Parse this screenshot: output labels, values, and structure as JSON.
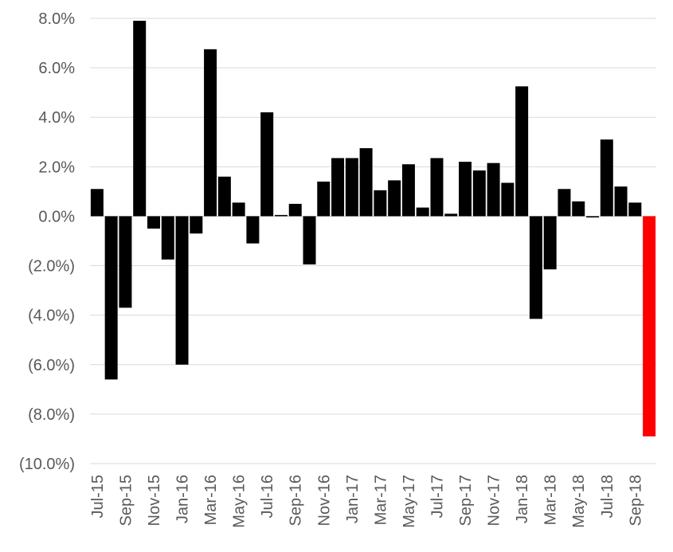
{
  "chart_data": {
    "type": "bar",
    "title": "",
    "xlabel": "",
    "ylabel": "",
    "ylim": [
      -10,
      8
    ],
    "yticks": [
      8,
      6,
      4,
      2,
      0,
      -2,
      -4,
      -6,
      -8,
      -10
    ],
    "ytick_labels": [
      "8.0%",
      "6.0%",
      "4.0%",
      "2.0%",
      "0.0%",
      "(2.0%)",
      "(4.0%)",
      "(6.0%)",
      "(8.0%)",
      "(10.0%)"
    ],
    "grid": true,
    "legend": "none",
    "bar_color": "#000000",
    "highlight_color": "#ff0000",
    "highlight_index": 39,
    "categories": [
      "Jul-15",
      "Aug-15",
      "Sep-15",
      "Oct-15",
      "Nov-15",
      "Dec-15",
      "Jan-16",
      "Feb-16",
      "Mar-16",
      "Apr-16",
      "May-16",
      "Jun-16",
      "Jul-16",
      "Aug-16",
      "Sep-16",
      "Oct-16",
      "Nov-16",
      "Dec-16",
      "Jan-17",
      "Feb-17",
      "Mar-17",
      "Apr-17",
      "May-17",
      "Jun-17",
      "Jul-17",
      "Aug-17",
      "Sep-17",
      "Oct-17",
      "Nov-17",
      "Dec-17",
      "Jan-18",
      "Feb-18",
      "Mar-18",
      "Apr-18",
      "May-18",
      "Jun-18",
      "Jul-18",
      "Aug-18",
      "Sep-18",
      "Oct-18"
    ],
    "x_tick_labels": [
      "Jul-15",
      "Sep-15",
      "Nov-15",
      "Jan-16",
      "Mar-16",
      "May-16",
      "Jul-16",
      "Sep-16",
      "Nov-16",
      "Jan-17",
      "Mar-17",
      "May-17",
      "Jul-17",
      "Sep-17",
      "Nov-17",
      "Jan-18",
      "Mar-18",
      "May-18",
      "Jul-18",
      "Sep-18"
    ],
    "values": [
      1.1,
      -6.6,
      -3.7,
      7.9,
      -0.5,
      -1.75,
      -6.0,
      -0.7,
      6.75,
      1.6,
      0.55,
      -1.1,
      4.2,
      0.05,
      0.5,
      -1.95,
      1.4,
      2.35,
      2.35,
      2.75,
      1.05,
      1.45,
      2.1,
      0.35,
      2.35,
      0.1,
      2.2,
      1.85,
      2.15,
      1.35,
      5.25,
      -4.15,
      -2.15,
      1.1,
      0.6,
      -0.05,
      3.1,
      1.2,
      0.55,
      -8.9
    ]
  }
}
